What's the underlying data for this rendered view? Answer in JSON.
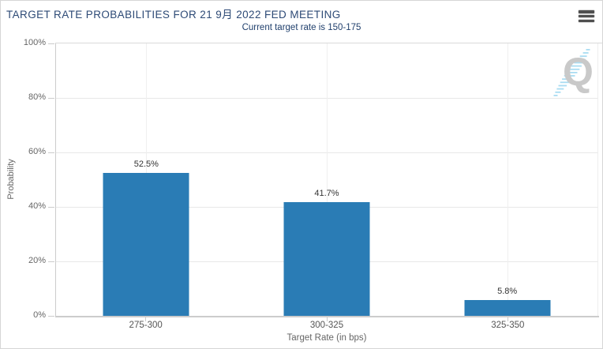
{
  "header": {
    "title": "TARGET RATE PROBABILITIES FOR 21 9月 2022 FED MEETING",
    "menu_icon": "hamburger-icon"
  },
  "chart_data": {
    "type": "bar",
    "title": "TARGET RATE PROBABILITIES FOR 21 9月 2022 FED MEETING",
    "subtitle": "Current target rate is 150-175",
    "categories": [
      "275-300",
      "300-325",
      "325-350"
    ],
    "values": [
      52.5,
      41.7,
      5.8
    ],
    "value_labels": [
      "52.5%",
      "41.7%",
      "5.8%"
    ],
    "xlabel": "Target Rate (in bps)",
    "ylabel": "Probability",
    "ylim": [
      0,
      100
    ],
    "ytick_labels": [
      "0%",
      "20%",
      "40%",
      "60%",
      "80%",
      "100%"
    ],
    "grid": true,
    "legend": false,
    "bar_color": "#2a7cb5"
  },
  "watermark": {
    "letter": "Q",
    "letter_color": "#c9c9c9",
    "dash_color": "#a9dcf2"
  },
  "colors": {
    "title_text": "#2d4a76",
    "subtitle_text": "#21406d",
    "bar": "#2a7cb5",
    "axis_tick_label": "#666666",
    "value_label": "#333333",
    "gridline": "#e8e8e8",
    "axis_line": "#cccccc"
  }
}
